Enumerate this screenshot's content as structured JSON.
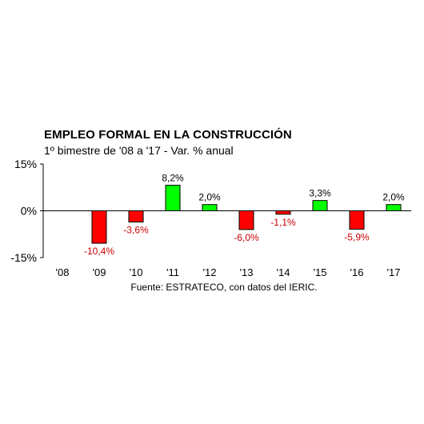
{
  "chart_data": {
    "type": "bar",
    "title": "EMPLEO FORMAL EN LA CONSTRUCCIÓN",
    "subtitle": "1º bimestre de '08 a '17 - Var. % anual",
    "source": "Fuente: ESTRATECO, con datos del IERIC.",
    "categories": [
      "'08",
      "'09",
      "'10",
      "'11",
      "'12",
      "'13",
      "'14",
      "'15",
      "'16",
      "'17"
    ],
    "values": [
      null,
      -10.4,
      -3.6,
      8.2,
      2.0,
      -6.0,
      -1.1,
      3.3,
      -5.9,
      2.0
    ],
    "data_labels": [
      "",
      "-10,4%",
      "-3,6%",
      "8,2%",
      "2,0%",
      "-6,0%",
      "-1,1%",
      "3,3%",
      "-5,9%",
      "2,0%"
    ],
    "ylim": [
      -15,
      15
    ],
    "yticks": [
      15,
      0,
      -15
    ],
    "ytick_labels": [
      "15%",
      "0%",
      "-15%"
    ],
    "grid": false,
    "colors": {
      "positive": "#00ff00",
      "negative": "#ff0000",
      "positive_label": "#000000",
      "negative_label": "#cc0000",
      "axis": "#000000"
    }
  }
}
